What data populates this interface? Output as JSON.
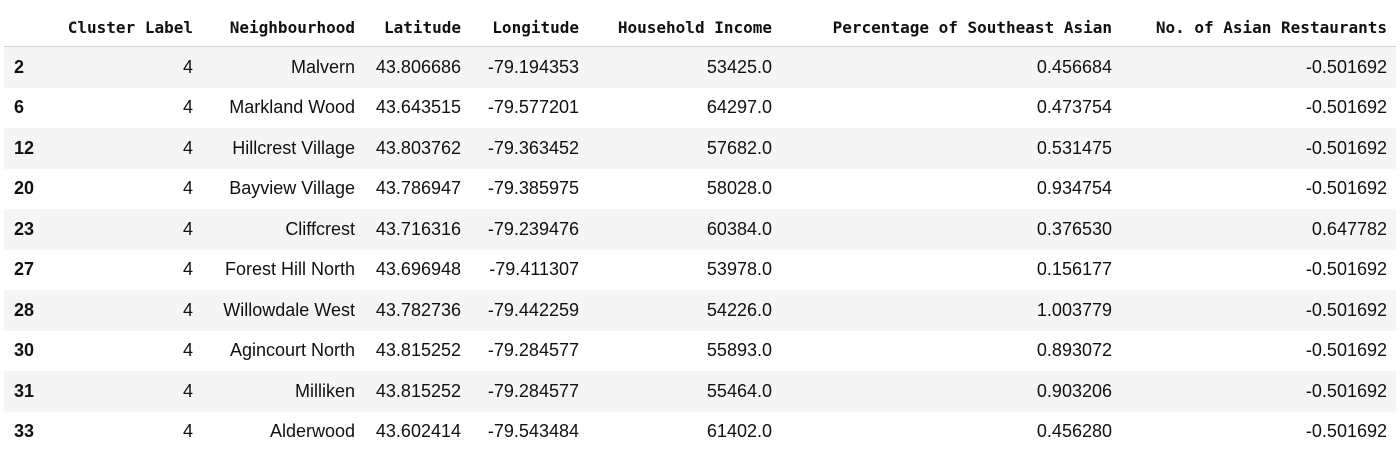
{
  "table": {
    "columns": [
      "Cluster Label",
      "Neighbourhood",
      "Latitude",
      "Longitude",
      "Household Income",
      "Percentage of Southeast Asian",
      "No. of Asian Restaurants"
    ],
    "rows": [
      {
        "index": "2",
        "cluster": "4",
        "neighbourhood": "Malvern",
        "lat": "43.806686",
        "lon": "-79.194353",
        "income": "53425.0",
        "pct": "0.456684",
        "restaurants": "-0.501692"
      },
      {
        "index": "6",
        "cluster": "4",
        "neighbourhood": "Markland Wood",
        "lat": "43.643515",
        "lon": "-79.577201",
        "income": "64297.0",
        "pct": "0.473754",
        "restaurants": "-0.501692"
      },
      {
        "index": "12",
        "cluster": "4",
        "neighbourhood": "Hillcrest Village",
        "lat": "43.803762",
        "lon": "-79.363452",
        "income": "57682.0",
        "pct": "0.531475",
        "restaurants": "-0.501692"
      },
      {
        "index": "20",
        "cluster": "4",
        "neighbourhood": "Bayview Village",
        "lat": "43.786947",
        "lon": "-79.385975",
        "income": "58028.0",
        "pct": "0.934754",
        "restaurants": "-0.501692"
      },
      {
        "index": "23",
        "cluster": "4",
        "neighbourhood": "Cliffcrest",
        "lat": "43.716316",
        "lon": "-79.239476",
        "income": "60384.0",
        "pct": "0.376530",
        "restaurants": "0.647782"
      },
      {
        "index": "27",
        "cluster": "4",
        "neighbourhood": "Forest Hill North",
        "lat": "43.696948",
        "lon": "-79.411307",
        "income": "53978.0",
        "pct": "0.156177",
        "restaurants": "-0.501692"
      },
      {
        "index": "28",
        "cluster": "4",
        "neighbourhood": "Willowdale West",
        "lat": "43.782736",
        "lon": "-79.442259",
        "income": "54226.0",
        "pct": "1.003779",
        "restaurants": "-0.501692"
      },
      {
        "index": "30",
        "cluster": "4",
        "neighbourhood": "Agincourt North",
        "lat": "43.815252",
        "lon": "-79.284577",
        "income": "55893.0",
        "pct": "0.893072",
        "restaurants": "-0.501692"
      },
      {
        "index": "31",
        "cluster": "4",
        "neighbourhood": "Milliken",
        "lat": "43.815252",
        "lon": "-79.284577",
        "income": "55464.0",
        "pct": "0.903206",
        "restaurants": "-0.501692"
      },
      {
        "index": "33",
        "cluster": "4",
        "neighbourhood": "Alderwood",
        "lat": "43.602414",
        "lon": "-79.543484",
        "income": "61402.0",
        "pct": "0.456280",
        "restaurants": "-0.501692"
      }
    ]
  }
}
